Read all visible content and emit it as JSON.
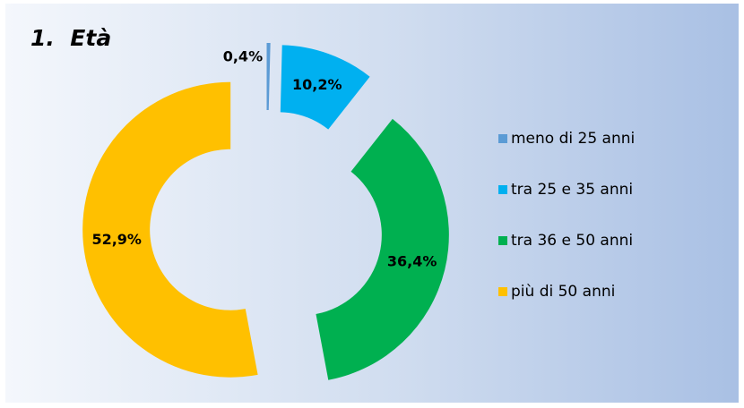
{
  "chart_data": {
    "type": "pie",
    "title": "1.  Età",
    "categories": [
      "meno di 25 anni",
      "tra 25 e 35 anni",
      "tra 36 e 50 anni",
      "più di 50 anni"
    ],
    "values": [
      0.4,
      10.2,
      36.4,
      52.9
    ],
    "value_labels": [
      "0,4%",
      "10,2%",
      "36,4%",
      "52,9%"
    ],
    "colors": [
      "#5b9bd5",
      "#00b0f0",
      "#00b050",
      "#ffc000"
    ],
    "legend": "right"
  }
}
